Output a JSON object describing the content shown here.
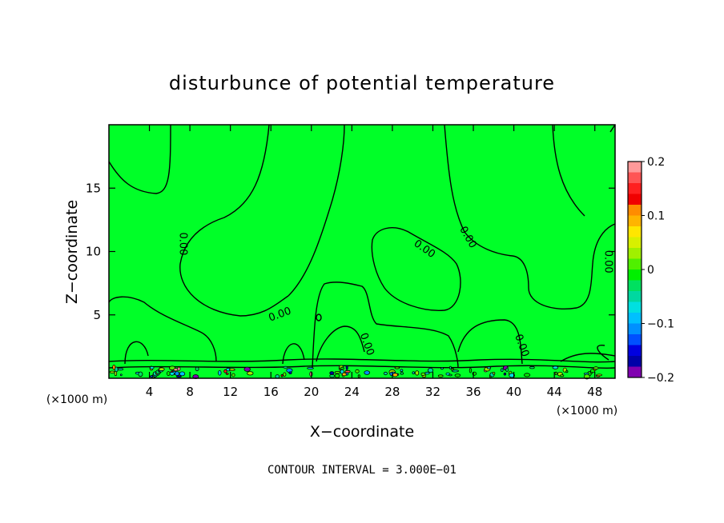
{
  "chart_data": {
    "type": "heatmap",
    "title": "disturbunce of potential temperature",
    "xlabel": "X−coordinate",
    "ylabel": "Z−coordinate",
    "x_unit_left": "(×1000 m)",
    "x_unit_right": "(×1000 m)",
    "xlim": [
      0,
      50
    ],
    "ylim": [
      0,
      20
    ],
    "x_ticks": [
      4,
      8,
      12,
      16,
      20,
      24,
      28,
      32,
      36,
      40,
      44,
      48
    ],
    "y_ticks": [
      5,
      10,
      15
    ],
    "contour_labels": [
      {
        "text": "0.00",
        "x": 7.0,
        "y": 10.6
      },
      {
        "text": "0.00",
        "x": 17.0,
        "y": 4.8
      },
      {
        "text": "0.00",
        "x": 31.0,
        "y": 10.0
      },
      {
        "text": "0.00",
        "x": 35.2,
        "y": 11.0
      },
      {
        "text": "0.00",
        "x": 49.0,
        "y": 9.2
      },
      {
        "text": "0.00",
        "x": 25.2,
        "y": 2.6
      },
      {
        "text": "0.00",
        "x": 40.5,
        "y": 2.5
      }
    ],
    "colorbar": {
      "min": -0.2,
      "max": 0.2,
      "tick_labels": [
        "0.2",
        "0.1",
        "0",
        "−0.1",
        "−0.2"
      ],
      "tick_values": [
        0.2,
        0.1,
        0,
        -0.1,
        -0.2
      ],
      "colors": [
        "#ff9999",
        "#ff5555",
        "#ff2020",
        "#f00000",
        "#ff8c00",
        "#ffb400",
        "#ffe600",
        "#d8f000",
        "#a0f000",
        "#50f000",
        "#00f000",
        "#00e060",
        "#00d8a0",
        "#00e0e0",
        "#00c0ff",
        "#0090ff",
        "#0050ff",
        "#0000e0",
        "#0000a8",
        "#8000b0"
      ]
    },
    "footer": "CONTOUR INTERVAL = 3.000E−01",
    "dominant_color": "#00ff28"
  }
}
